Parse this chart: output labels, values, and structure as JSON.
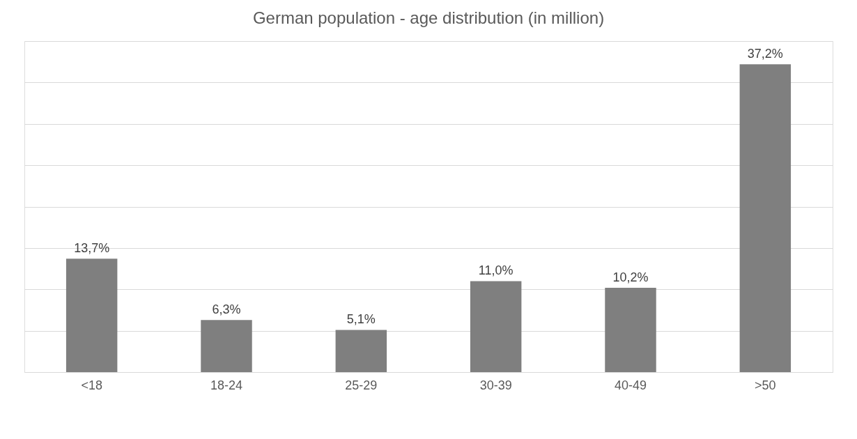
{
  "chart_data": {
    "type": "bar",
    "title": "German population - age distribution (in million)",
    "categories": [
      "<18",
      "18-24",
      "25-29",
      "30-39",
      "40-49",
      ">50"
    ],
    "values": [
      13.7,
      6.3,
      5.1,
      11.0,
      10.2,
      37.2
    ],
    "value_labels": [
      "13,7%",
      "6,3%",
      "5,1%",
      "11,0%",
      "10,2%",
      "37,2%"
    ],
    "color": "#7f7f7f",
    "ylim": [
      0,
      40
    ],
    "yticks": [
      {
        "value": 0,
        "label": null
      },
      {
        "value": 5,
        "label": null
      },
      {
        "value": 10,
        "label": null
      },
      {
        "value": 15,
        "label": null
      },
      {
        "value": 20,
        "label": null
      },
      {
        "value": 25,
        "label": null
      },
      {
        "value": 30,
        "label": null
      },
      {
        "value": 35,
        "label": null
      },
      {
        "value": 40,
        "label": null
      }
    ],
    "grid": "y",
    "tick_labels": "x"
  }
}
